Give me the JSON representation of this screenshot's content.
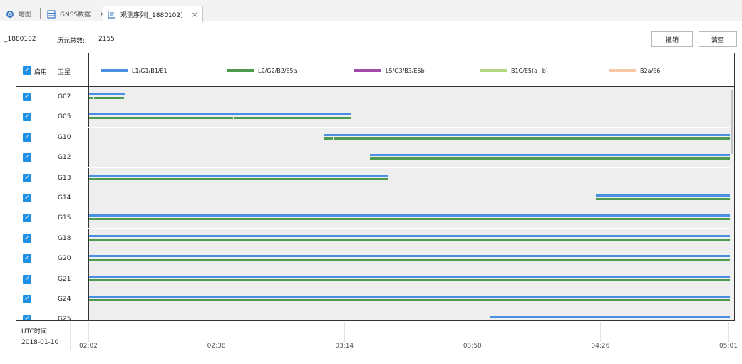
{
  "tabs": [
    {
      "label": "地图",
      "icon": "gear-icon",
      "active": false,
      "closable": false
    },
    {
      "label": "GNSS数据",
      "icon": "table-icon",
      "active": false,
      "closable": true
    },
    {
      "label": "观测序列[_1880102]",
      "icon": "chart-icon",
      "active": true,
      "closable": true
    }
  ],
  "info": {
    "station": "_1880102",
    "epoch_label": "历元总数:",
    "epoch_count": "2155"
  },
  "buttons": {
    "undo": "撤销",
    "clear": "清空"
  },
  "header": {
    "enable_label": "启用",
    "satellite_label": "卫星",
    "legend": [
      {
        "label": "L1/G1/B1/E1",
        "color": "#4a90e2"
      },
      {
        "label": "L2/G2/B2/E5a",
        "color": "#4e9a4e"
      },
      {
        "label": "L5/G3/B3/E5b",
        "color": "#a24aa8"
      },
      {
        "label": "B1C/E5(a+b)",
        "color": "#b5d67e"
      },
      {
        "label": "B2a/E6",
        "color": "#f7c6a3"
      }
    ]
  },
  "rows": [
    {
      "sat": "G02",
      "checked": true,
      "l1": [
        [
          0,
          0.055
        ]
      ],
      "l2": [
        [
          0,
          0.006
        ],
        [
          0.008,
          0.055
        ]
      ]
    },
    {
      "sat": "G05",
      "checked": true,
      "l1": [
        [
          0,
          0.408
        ]
      ],
      "l2": [
        [
          0,
          0.224
        ],
        [
          0.226,
          0.408
        ]
      ]
    },
    {
      "sat": "G10",
      "checked": true,
      "l1": [
        [
          0.365,
          1.0
        ]
      ],
      "l2": [
        [
          0.365,
          0.38
        ],
        [
          0.382,
          0.384
        ],
        [
          0.386,
          1.0
        ]
      ]
    },
    {
      "sat": "G12",
      "checked": true,
      "l1": [
        [
          0.438,
          1.0
        ]
      ],
      "l2": [
        [
          0.438,
          1.0
        ]
      ]
    },
    {
      "sat": "G13",
      "checked": true,
      "l1": [
        [
          0,
          0.465
        ]
      ],
      "l2": [
        [
          0,
          0.465
        ]
      ]
    },
    {
      "sat": "G14",
      "checked": true,
      "l1": [
        [
          0.79,
          1.0
        ]
      ],
      "l2": [
        [
          0.79,
          1.0
        ]
      ]
    },
    {
      "sat": "G15",
      "checked": true,
      "l1": [
        [
          0,
          1.0
        ]
      ],
      "l2": [
        [
          0,
          1.0
        ]
      ]
    },
    {
      "sat": "G18",
      "checked": true,
      "l1": [
        [
          0,
          1.0
        ]
      ],
      "l2": [
        [
          0,
          1.0
        ]
      ]
    },
    {
      "sat": "G20",
      "checked": true,
      "l1": [
        [
          0,
          1.0
        ]
      ],
      "l2": [
        [
          0,
          1.0
        ]
      ]
    },
    {
      "sat": "G21",
      "checked": true,
      "l1": [
        [
          0,
          1.0
        ]
      ],
      "l2": [
        [
          0,
          1.0
        ]
      ]
    },
    {
      "sat": "G24",
      "checked": true,
      "l1": [
        [
          0,
          1.0
        ]
      ],
      "l2": [
        [
          0,
          1.0
        ]
      ]
    },
    {
      "sat": "G25",
      "checked": true,
      "l1": [
        [
          0.624,
          1.0
        ]
      ],
      "l2": []
    }
  ],
  "axis": {
    "title": "UTC时间",
    "date": "2018-01-10",
    "ticks": [
      "02:02",
      "02:38",
      "03:14",
      "03:50",
      "04:26",
      "05:01"
    ]
  }
}
